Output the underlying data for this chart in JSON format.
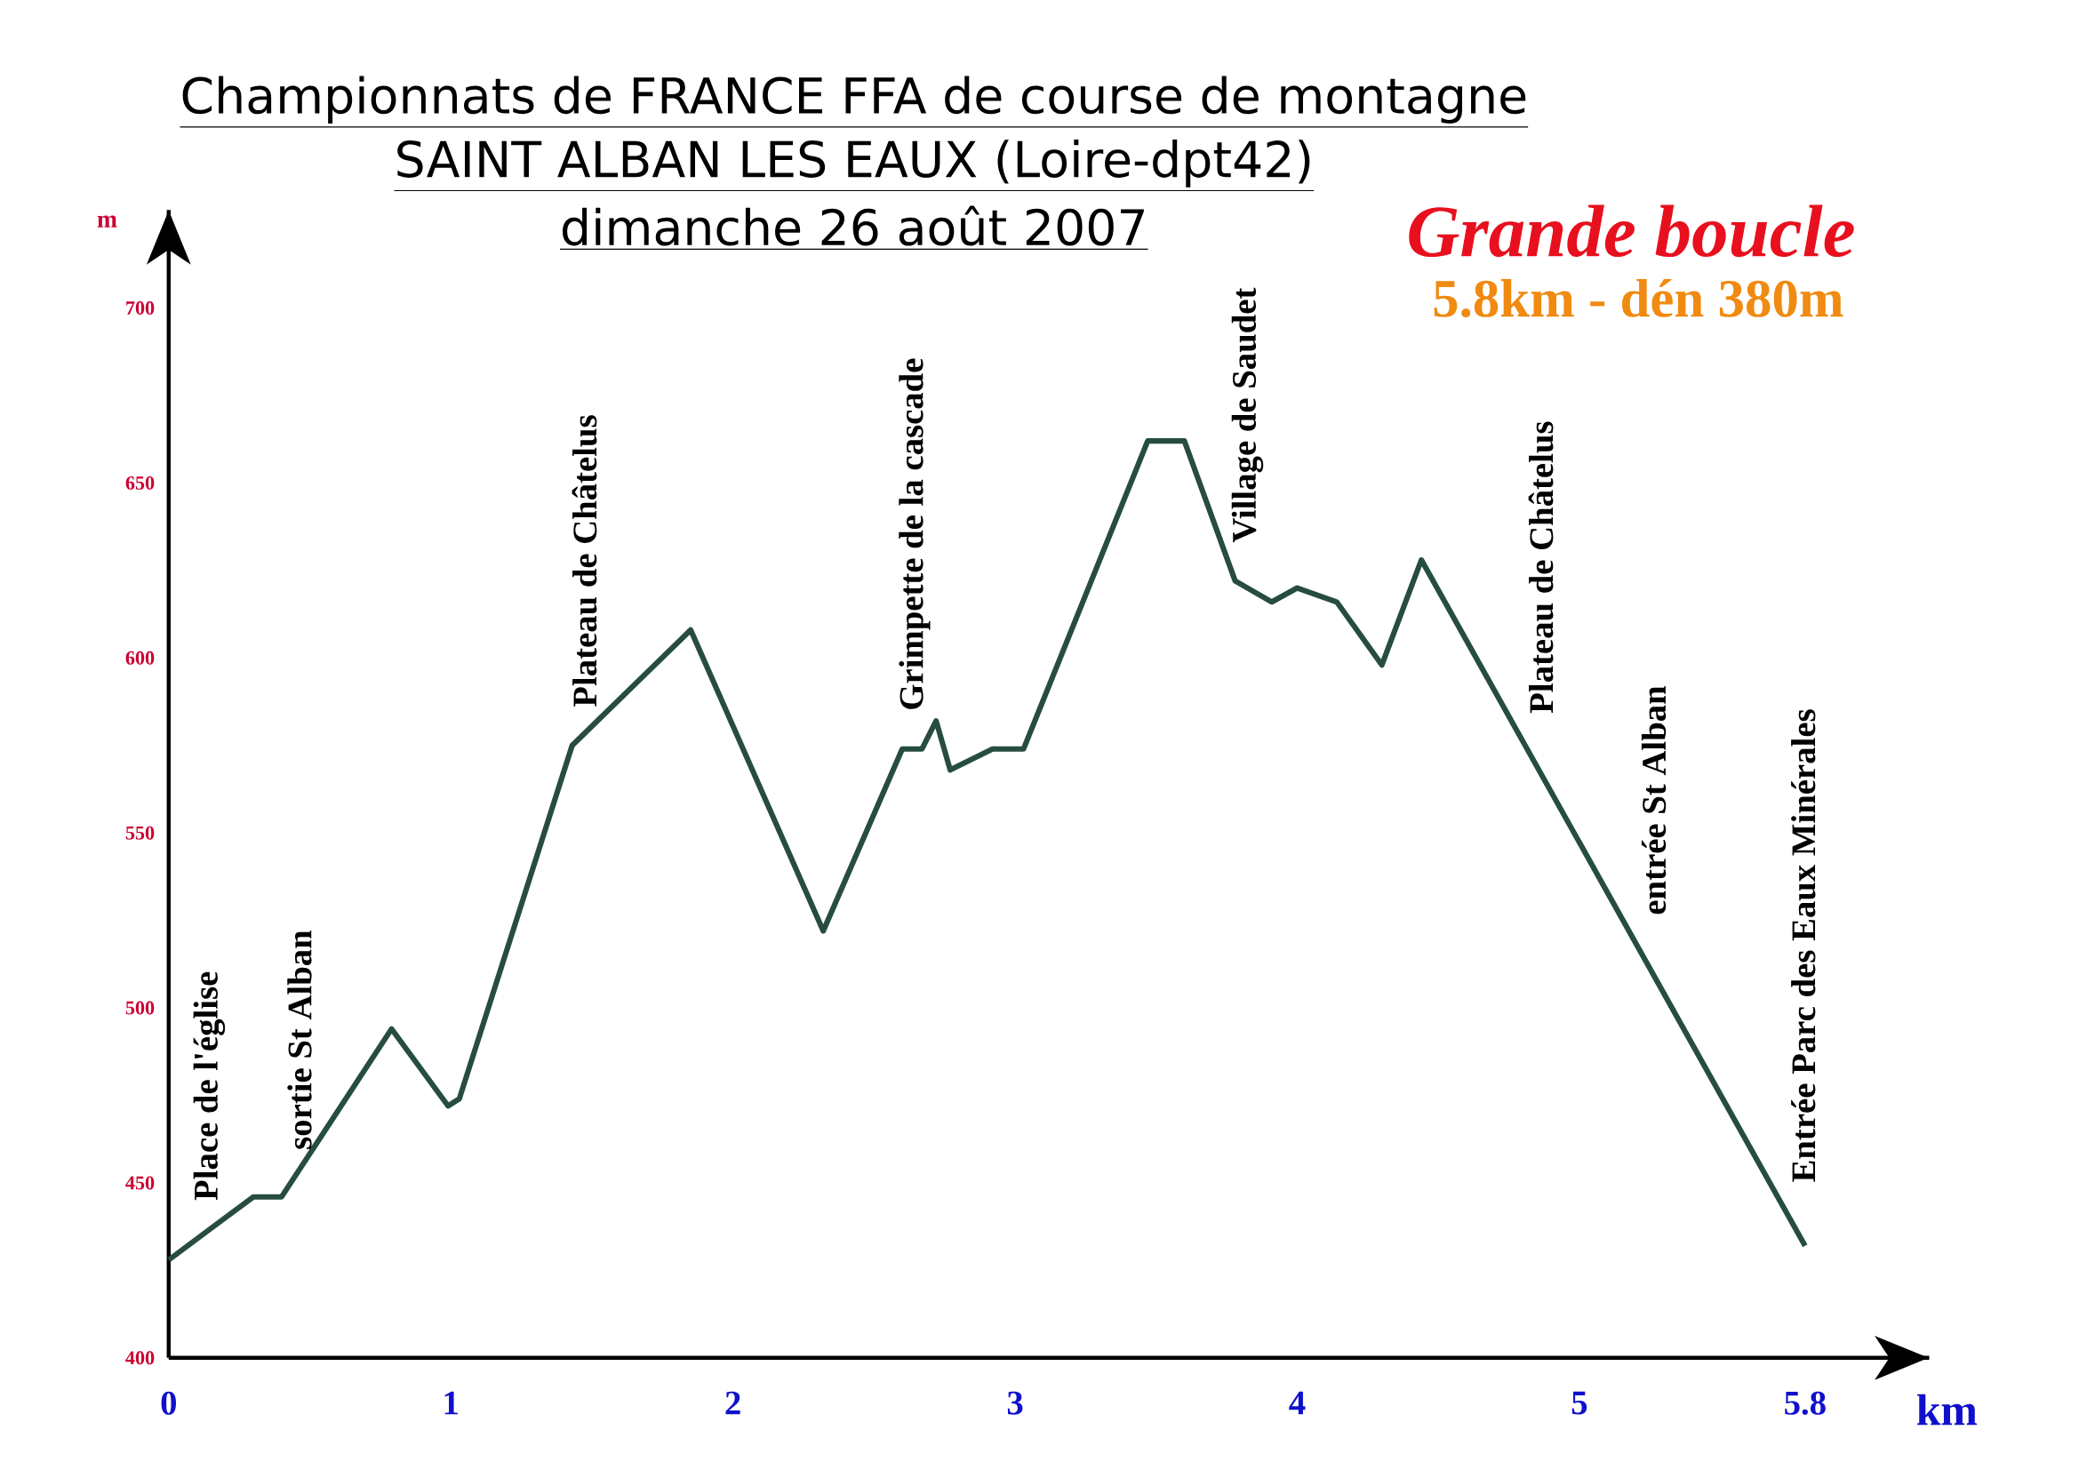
{
  "chart_data": {
    "type": "line",
    "title": "Championnats de FRANCE FFA de course de montagne",
    "subtitle": "SAINT ALBAN LES EAUX (Loire-dpt42)",
    "xlabel": "km",
    "ylabel": "m",
    "x": [
      0,
      0.3,
      0.4,
      0.79,
      0.99,
      1.03,
      1.43,
      1.85,
      2.32,
      2.6,
      2.67,
      2.72,
      2.77,
      2.92,
      3.03,
      3.47,
      3.6,
      3.78,
      3.91,
      4.0,
      4.14,
      4.3,
      4.44,
      5.8
    ],
    "values": [
      428,
      446,
      446,
      494,
      472,
      474,
      575,
      608,
      522,
      574,
      574,
      582,
      568,
      574,
      574,
      662,
      662,
      622,
      616,
      620,
      616,
      598,
      628,
      432
    ],
    "color": "#264d40",
    "xlim": [
      0,
      6.24
    ],
    "ylim": [
      400,
      728
    ],
    "xticks": [
      0,
      1,
      2,
      3,
      4,
      5,
      5.8
    ],
    "yticks": [
      400,
      450,
      500,
      550,
      600,
      650,
      700
    ],
    "annotations": [
      "dimanche 26 août 2007",
      "Grande boucle",
      "5.8km -  dén 380m",
      {
        "text": "Place de l'église",
        "x": 0.1,
        "y": 434
      },
      {
        "text": "sortie St Alban",
        "x": 0.42,
        "y": 448.5
      },
      {
        "text": "Plateau de Châtelus",
        "x": 1.43,
        "y": 575
      },
      {
        "text": "Grimpette de la cascade",
        "x": 2.6,
        "y": 574
      },
      {
        "text": "Village de Saudet",
        "x": 3.78,
        "y": 622
      },
      {
        "text": "Plateau de Châtelus",
        "x": 4.82,
        "y": 573.2
      },
      {
        "text": "entrée St Alban",
        "x": 5.22,
        "y": 515.6
      },
      {
        "text": "Entrée Parc des Eaux Minérales",
        "x": 5.75,
        "y": 439.2
      }
    ]
  }
}
